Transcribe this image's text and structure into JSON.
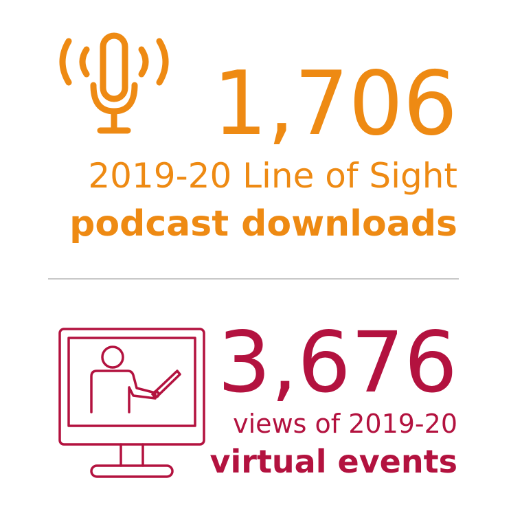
{
  "stats": [
    {
      "number": "1,706",
      "line1": "2019-20 Line of Sight",
      "line2": "podcast downloads"
    },
    {
      "number": "3,676",
      "line1": "views of 2019-20",
      "line2": "virtual events"
    }
  ]
}
